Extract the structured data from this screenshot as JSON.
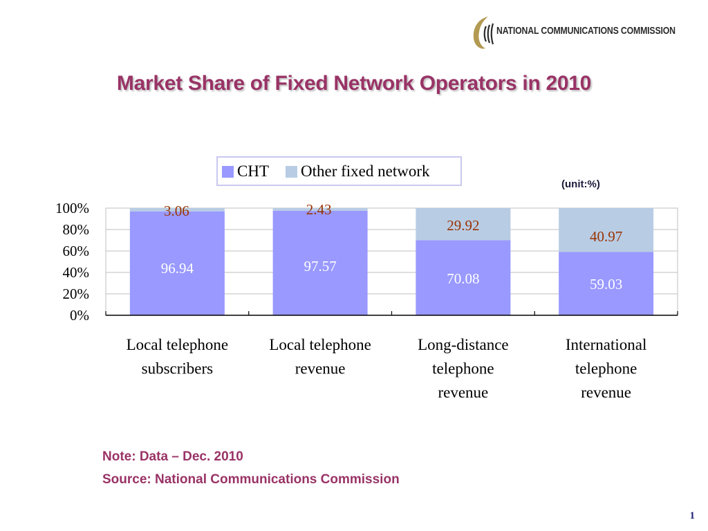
{
  "header": {
    "org_name": "NATIONAL COMMUNICATIONS COMMISSION"
  },
  "slide": {
    "title": "Market Share of Fixed Network Operators in 2010",
    "unit_label": "(unit:%)",
    "note": "Note: Data – Dec. 2010",
    "source": "Source: National Communications Commission",
    "page_number": "1"
  },
  "colors": {
    "title": "#993366",
    "cht": "#9999ff",
    "other": "#b8cce4",
    "label_other": "#993300",
    "label_cht": "#ffffff"
  },
  "chart_data": {
    "type": "bar",
    "stacked": true,
    "categories": [
      [
        "Local telephone",
        "subscribers"
      ],
      [
        "Local telephone",
        "revenue"
      ],
      [
        "Long-distance",
        "telephone",
        "revenue"
      ],
      [
        "International",
        "telephone",
        "revenue"
      ]
    ],
    "series": [
      {
        "name": "CHT",
        "values": [
          96.94,
          97.57,
          70.08,
          59.03
        ],
        "labels": [
          "96.94",
          "97.57",
          "70.08",
          "59.03"
        ]
      },
      {
        "name": "Other fixed network",
        "values": [
          3.06,
          2.43,
          29.92,
          40.97
        ],
        "labels": [
          "3.06",
          "2.43",
          "29.92",
          "40.97"
        ]
      }
    ],
    "y_ticks": [
      "0%",
      "20%",
      "40%",
      "60%",
      "80%",
      "100%"
    ],
    "ylim": [
      0,
      100
    ],
    "grid": true,
    "legend": "top"
  }
}
